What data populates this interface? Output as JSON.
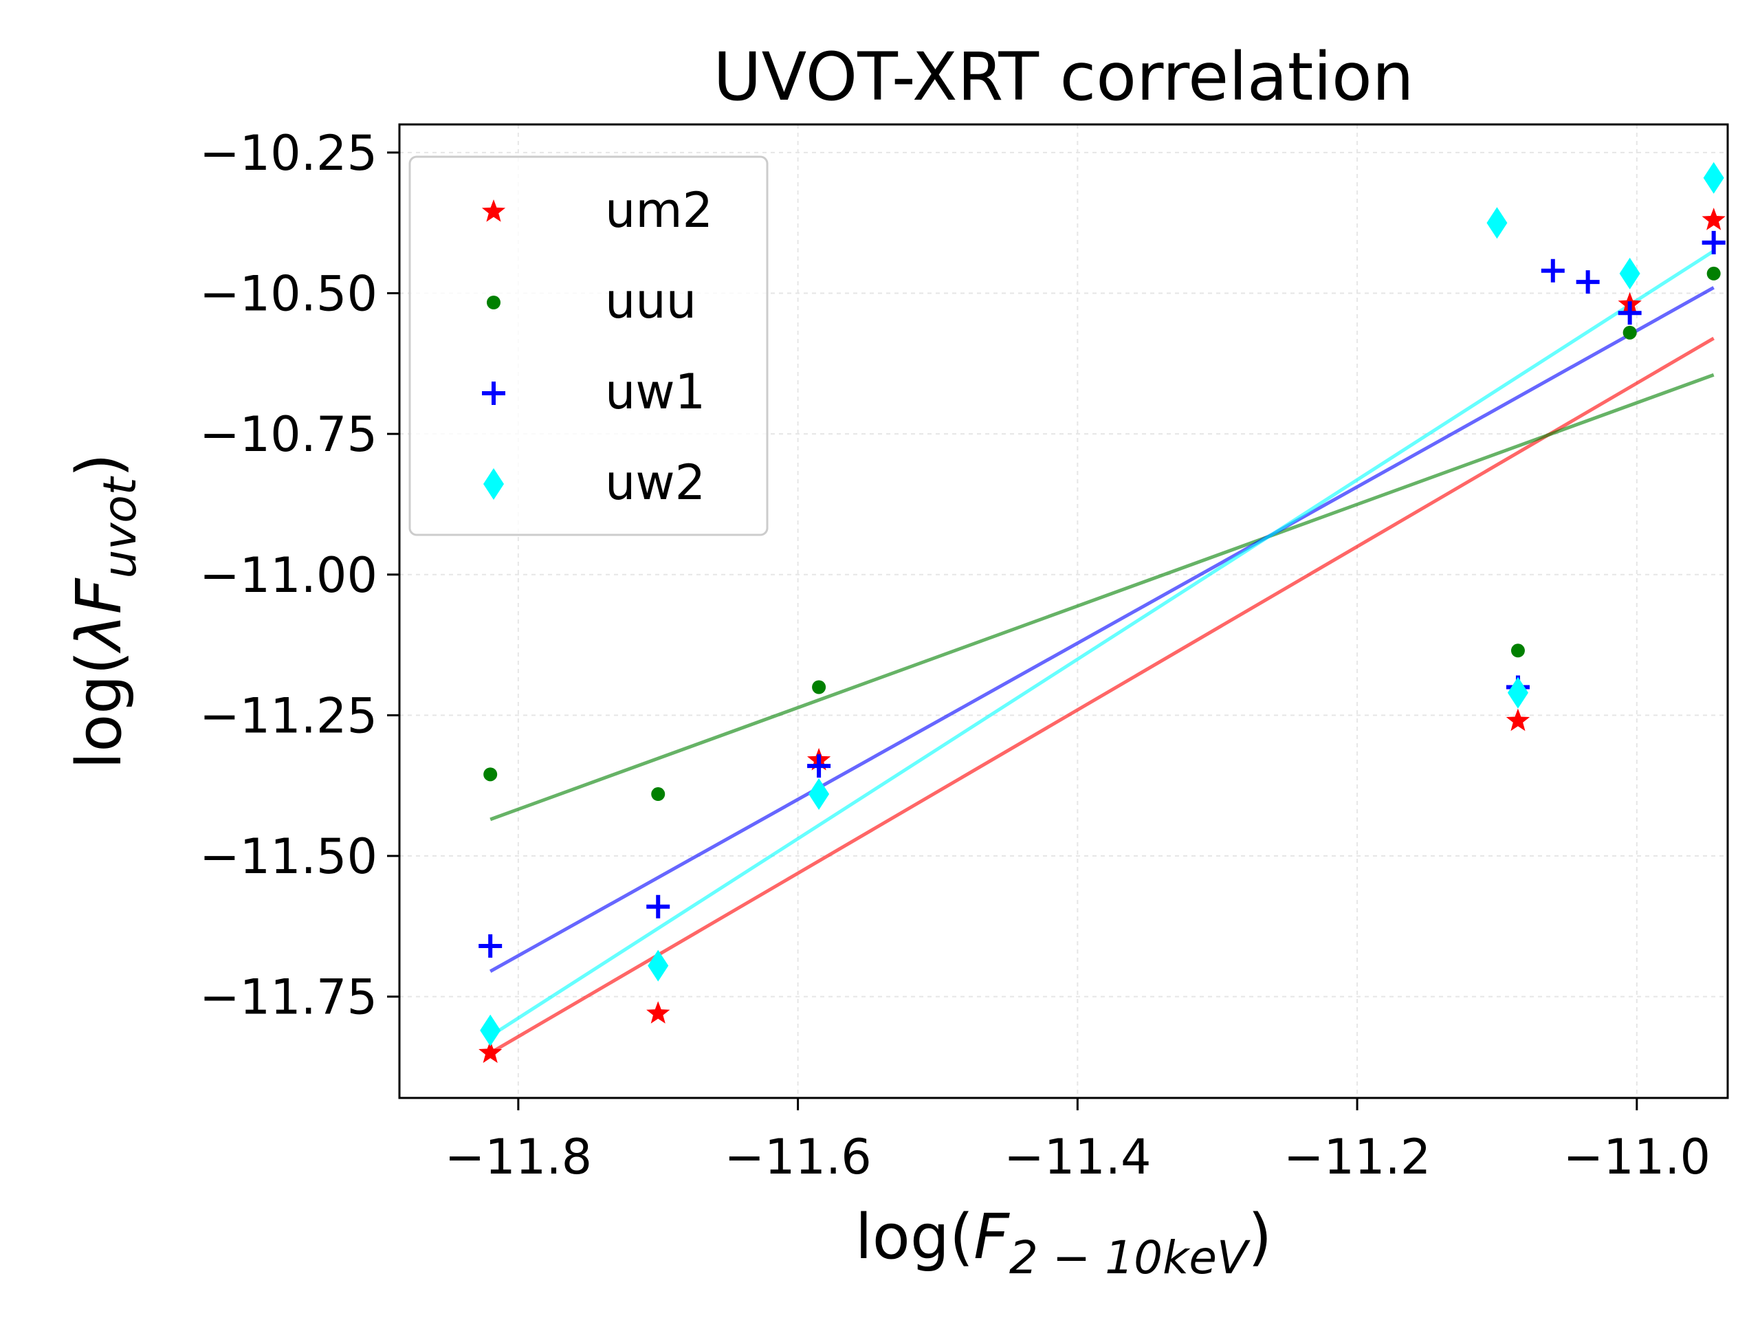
{
  "chart_data": {
    "type": "scatter",
    "title": "UVOT-XRT correlation",
    "xlabel": {
      "prefix": "log(",
      "var": "F",
      "sub": "2 − 10keV",
      "suffix": ")"
    },
    "ylabel": {
      "prefix": "log(",
      "var": "λF",
      "sub": "uvot",
      "suffix": ")"
    },
    "xlim": [
      -11.885,
      -10.935
    ],
    "ylim": [
      -11.93,
      -10.2
    ],
    "xticks": [
      -11.8,
      -11.6,
      -11.4,
      -11.2,
      -11.0
    ],
    "xtick_labels": [
      "−11.8",
      "−11.6",
      "−11.4",
      "−11.2",
      "−11.0"
    ],
    "yticks": [
      -10.25,
      -10.5,
      -10.75,
      -11.0,
      -11.25,
      -11.5,
      -11.75
    ],
    "ytick_labels": [
      "−10.25",
      "−10.50",
      "−10.75",
      "−11.00",
      "−11.25",
      "−11.50",
      "−11.75"
    ],
    "grid": true,
    "legend": "top-left",
    "series": [
      {
        "name": "um2",
        "marker": "star",
        "color": "#ff0000",
        "x": [
          -11.82,
          -11.7,
          -11.585,
          -11.085,
          -11.005,
          -10.945
        ],
        "y": [
          -11.85,
          -11.78,
          -11.33,
          -11.26,
          -10.52,
          -10.37
        ],
        "fit": {
          "x": [
            -11.82,
            -10.945
          ],
          "y": [
            -11.85,
            -10.58
          ],
          "color": "#ff0000"
        }
      },
      {
        "name": "uuu",
        "marker": "dot",
        "color": "#008000",
        "x": [
          -11.82,
          -11.7,
          -11.585,
          -11.085,
          -11.005,
          -10.945
        ],
        "y": [
          -11.355,
          -11.39,
          -11.2,
          -11.135,
          -10.57,
          -10.465
        ],
        "fit": {
          "x": [
            -11.82,
            -10.945
          ],
          "y": [
            -11.435,
            -10.645
          ],
          "color": "#008000"
        }
      },
      {
        "name": "uw1",
        "marker": "plus",
        "color": "#0000ff",
        "x": [
          -11.82,
          -11.7,
          -11.585,
          -11.085,
          -11.06,
          -11.035,
          -11.005,
          -10.945
        ],
        "y": [
          -11.66,
          -11.59,
          -11.34,
          -11.2,
          -10.46,
          -10.48,
          -10.535,
          -10.41
        ],
        "fit": {
          "x": [
            -11.82,
            -10.945
          ],
          "y": [
            -11.705,
            -10.49
          ],
          "color": "#0000ff"
        }
      },
      {
        "name": "uw2",
        "marker": "diamond",
        "color": "#00ffff",
        "x": [
          -11.82,
          -11.7,
          -11.585,
          -11.085,
          -11.1,
          -11.005,
          -10.945
        ],
        "y": [
          -11.81,
          -11.695,
          -11.39,
          -11.21,
          -10.375,
          -10.465,
          -10.295
        ],
        "fit": {
          "x": [
            -11.82,
            -10.945
          ],
          "y": [
            -11.82,
            -10.425
          ],
          "color": "#00ffff"
        }
      }
    ]
  }
}
